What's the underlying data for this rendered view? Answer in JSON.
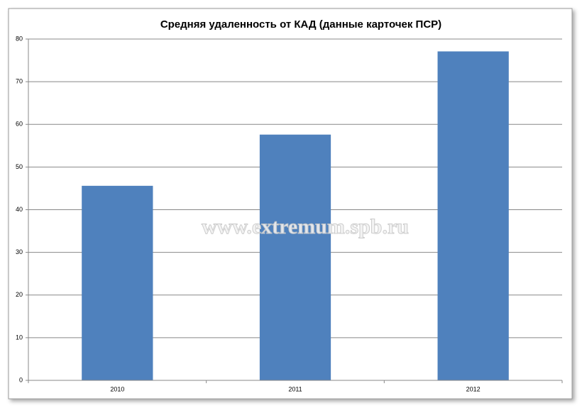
{
  "chart_data": {
    "type": "bar",
    "title": "Средняя удаленность от КАД (данные карточек ПСР)",
    "categories": [
      "2010",
      "2011",
      "2012"
    ],
    "values": [
      45.6,
      57.6,
      77.1
    ],
    "color": "#4f81bd",
    "ylim": [
      0,
      80
    ],
    "yticks": [
      0,
      10,
      20,
      30,
      40,
      50,
      60,
      70,
      80
    ],
    "grid": true,
    "watermark": "www.extremum.spb.ru"
  }
}
